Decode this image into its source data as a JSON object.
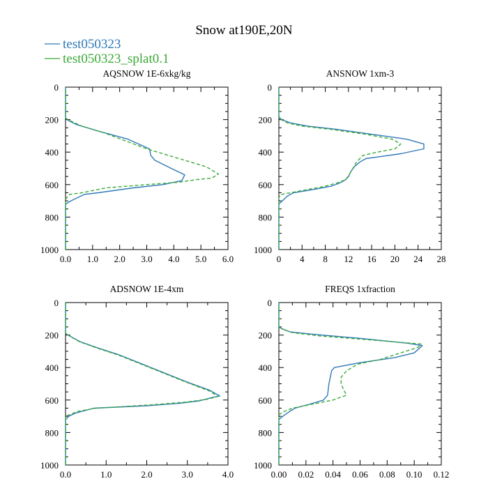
{
  "figure": {
    "title": "Snow at190E,20N",
    "colors": {
      "series1": "#2e78b8",
      "series2": "#3aa935",
      "axis": "#000000"
    }
  },
  "legend": [
    {
      "name": "test050323",
      "color": "#2e78b8",
      "dash": "solid"
    },
    {
      "name": "test050323_splat0.1",
      "color": "#3aa935",
      "dash": "dashed"
    }
  ],
  "chart_data": [
    {
      "type": "line",
      "title": "AQSNOW  1E-6xkg/kg",
      "xlim": [
        0,
        6
      ],
      "xticks": [
        "0.0",
        "1.0",
        "2.0",
        "3.0",
        "4.0",
        "5.0",
        "6.0"
      ],
      "ylim": [
        0,
        1000
      ],
      "yticks": [
        "0",
        "200",
        "400",
        "600",
        "800",
        "1000"
      ],
      "y_inverted": true,
      "series": [
        {
          "values": [
            [
              0,
              1000
            ],
            [
              0,
              740
            ],
            [
              0,
              720
            ],
            [
              0.2,
              700
            ],
            [
              0.7,
              660
            ],
            [
              1.2,
              650
            ],
            [
              2.5,
              620
            ],
            [
              3.6,
              600
            ],
            [
              4.3,
              575
            ],
            [
              4.4,
              540
            ],
            [
              3.9,
              500
            ],
            [
              3.3,
              450
            ],
            [
              3.15,
              420
            ],
            [
              3.1,
              380
            ],
            [
              2.3,
              320
            ],
            [
              1.2,
              270
            ],
            [
              0.4,
              230
            ],
            [
              0.1,
              205
            ],
            [
              0,
              190
            ],
            [
              0,
              150
            ],
            [
              0,
              0
            ]
          ]
        },
        {
          "values": [
            [
              0,
              1000
            ],
            [
              0,
              700
            ],
            [
              0,
              690
            ],
            [
              0.15,
              660
            ],
            [
              0.6,
              650
            ],
            [
              1.5,
              620
            ],
            [
              3.0,
              600
            ],
            [
              4.2,
              585
            ],
            [
              4.8,
              570
            ],
            [
              5.4,
              560
            ],
            [
              5.65,
              535
            ],
            [
              5.2,
              490
            ],
            [
              4.6,
              460
            ],
            [
              3.8,
              420
            ],
            [
              3.0,
              380
            ],
            [
              2.2,
              330
            ],
            [
              1.4,
              280
            ],
            [
              0.6,
              240
            ],
            [
              0.15,
              205
            ],
            [
              0,
              190
            ],
            [
              0,
              150
            ],
            [
              0,
              0
            ]
          ]
        }
      ]
    },
    {
      "type": "line",
      "title": "ANSNOW  1xm-3",
      "xlim": [
        0,
        28
      ],
      "xticks": [
        "0",
        "4",
        "8",
        "12",
        "16",
        "20",
        "24",
        "28"
      ],
      "ylim": [
        0,
        1000
      ],
      "yticks": [
        "0",
        "200",
        "400",
        "600",
        "800",
        "1000"
      ],
      "y_inverted": true,
      "series": [
        {
          "values": [
            [
              0,
              1000
            ],
            [
              0,
              730
            ],
            [
              0,
              720
            ],
            [
              0.6,
              700
            ],
            [
              1.5,
              670
            ],
            [
              2.5,
              650
            ],
            [
              6,
              630
            ],
            [
              9,
              610
            ],
            [
              10.5,
              590
            ],
            [
              11.5,
              570
            ],
            [
              12,
              550
            ],
            [
              12.4,
              520
            ],
            [
              13,
              490
            ],
            [
              14,
              460
            ],
            [
              15,
              440
            ],
            [
              17,
              430
            ],
            [
              21,
              410
            ],
            [
              25,
              380
            ],
            [
              25,
              350
            ],
            [
              22,
              320
            ],
            [
              16,
              290
            ],
            [
              10,
              260
            ],
            [
              5,
              240
            ],
            [
              2,
              220
            ],
            [
              0.5,
              200
            ],
            [
              0,
              185
            ],
            [
              0,
              150
            ],
            [
              0,
              0
            ]
          ]
        },
        {
          "values": [
            [
              0,
              1000
            ],
            [
              0,
              700
            ],
            [
              0,
              680
            ],
            [
              0.5,
              660
            ],
            [
              2,
              650
            ],
            [
              5,
              630
            ],
            [
              8,
              610
            ],
            [
              10,
              590
            ],
            [
              11.5,
              570
            ],
            [
              12,
              545
            ],
            [
              12.6,
              510
            ],
            [
              13.4,
              460
            ],
            [
              14.5,
              420
            ],
            [
              17,
              400
            ],
            [
              20,
              380
            ],
            [
              21,
              350
            ],
            [
              19.5,
              320
            ],
            [
              15,
              290
            ],
            [
              9,
              260
            ],
            [
              4,
              240
            ],
            [
              1.5,
              220
            ],
            [
              0.4,
              200
            ],
            [
              0,
              180
            ],
            [
              0,
              150
            ],
            [
              0,
              0
            ]
          ]
        }
      ]
    },
    {
      "type": "line",
      "title": "ADSNOW  1E-4xm",
      "xlim": [
        0,
        4
      ],
      "xticks": [
        "0.0",
        "1.0",
        "2.0",
        "3.0",
        "4.0"
      ],
      "ylim": [
        0,
        1000
      ],
      "yticks": [
        "0",
        "200",
        "400",
        "600",
        "800",
        "1000"
      ],
      "y_inverted": true,
      "series": [
        {
          "values": [
            [
              0,
              1000
            ],
            [
              0,
              730
            ],
            [
              0,
              720
            ],
            [
              0.08,
              700
            ],
            [
              0.25,
              680
            ],
            [
              0.7,
              650
            ],
            [
              2.0,
              635
            ],
            [
              2.8,
              620
            ],
            [
              3.3,
              605
            ],
            [
              3.6,
              585
            ],
            [
              3.8,
              575
            ],
            [
              3.55,
              540
            ],
            [
              3.0,
              490
            ],
            [
              2.4,
              430
            ],
            [
              1.8,
              370
            ],
            [
              1.3,
              320
            ],
            [
              0.8,
              280
            ],
            [
              0.35,
              240
            ],
            [
              0.1,
              205
            ],
            [
              0,
              190
            ],
            [
              0,
              150
            ],
            [
              0,
              0
            ]
          ]
        },
        {
          "values": [
            [
              0,
              1000
            ],
            [
              0,
              710
            ],
            [
              0,
              700
            ],
            [
              0.1,
              690
            ],
            [
              0.3,
              670
            ],
            [
              0.75,
              650
            ],
            [
              2.1,
              630
            ],
            [
              3.0,
              612
            ],
            [
              3.5,
              595
            ],
            [
              3.75,
              578
            ],
            [
              3.55,
              545
            ],
            [
              3.0,
              493
            ],
            [
              2.4,
              433
            ],
            [
              1.8,
              373
            ],
            [
              1.3,
              323
            ],
            [
              0.8,
              282
            ],
            [
              0.35,
              242
            ],
            [
              0.1,
              207
            ],
            [
              0,
              190
            ],
            [
              0,
              150
            ],
            [
              0,
              0
            ]
          ]
        }
      ]
    },
    {
      "type": "line",
      "title": "FREQS  1xfraction",
      "xlim": [
        0,
        0.12
      ],
      "xticks": [
        "0.00",
        "0.02",
        "0.04",
        "0.06",
        "0.08",
        "0.10",
        "0.12"
      ],
      "ylim": [
        0,
        1000
      ],
      "yticks": [
        "0",
        "200",
        "400",
        "600",
        "800",
        "1000"
      ],
      "y_inverted": true,
      "series": [
        {
          "values": [
            [
              0,
              1000
            ],
            [
              0,
              730
            ],
            [
              0,
              720
            ],
            [
              0.003,
              700
            ],
            [
              0.008,
              670
            ],
            [
              0.012,
              650
            ],
            [
              0.025,
              620
            ],
            [
              0.033,
              600
            ],
            [
              0.036,
              570
            ],
            [
              0.037,
              500
            ],
            [
              0.038,
              460
            ],
            [
              0.039,
              420
            ],
            [
              0.041,
              400
            ],
            [
              0.06,
              370
            ],
            [
              0.085,
              340
            ],
            [
              0.1,
              310
            ],
            [
              0.106,
              265
            ],
            [
              0.095,
              250
            ],
            [
              0.06,
              220
            ],
            [
              0.025,
              195
            ],
            [
              0.008,
              180
            ],
            [
              0.002,
              160
            ],
            [
              0,
              150
            ],
            [
              0,
              0
            ]
          ]
        },
        {
          "values": [
            [
              0,
              1000
            ],
            [
              0,
              700
            ],
            [
              0,
              690
            ],
            [
              0.004,
              670
            ],
            [
              0.01,
              650
            ],
            [
              0.022,
              630
            ],
            [
              0.04,
              600
            ],
            [
              0.05,
              570
            ],
            [
              0.048,
              540
            ],
            [
              0.046,
              500
            ],
            [
              0.046,
              460
            ],
            [
              0.05,
              420
            ],
            [
              0.058,
              380
            ],
            [
              0.075,
              350
            ],
            [
              0.09,
              310
            ],
            [
              0.103,
              275
            ],
            [
              0.105,
              255
            ],
            [
              0.09,
              245
            ],
            [
              0.06,
              225
            ],
            [
              0.03,
              205
            ],
            [
              0.01,
              185
            ],
            [
              0.003,
              165
            ],
            [
              0,
              150
            ],
            [
              0,
              0
            ]
          ]
        }
      ]
    }
  ]
}
